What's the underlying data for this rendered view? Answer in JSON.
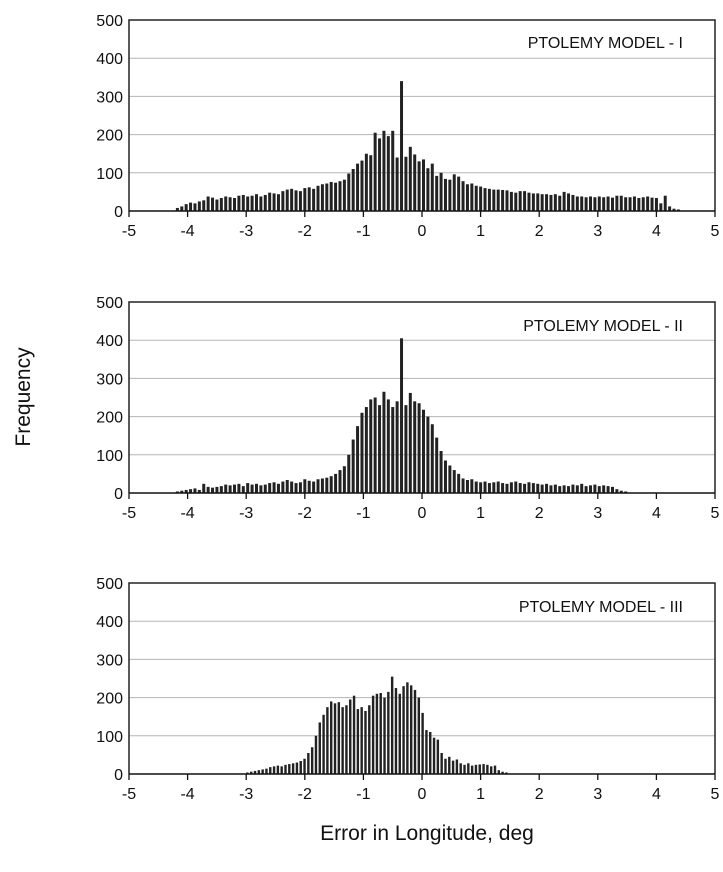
{
  "figure": {
    "ylabel": "Frequency",
    "xlabel": "Error in Longitude,  deg"
  },
  "chart_data": [
    {
      "type": "bar",
      "title": "PTOLEMY MODEL - I",
      "xlim": [
        -5,
        5
      ],
      "ylim": [
        0,
        500
      ],
      "xticks": [
        "-5",
        "-4",
        "-3",
        "-2",
        "-1",
        "0",
        "1",
        "2",
        "3",
        "4",
        "5"
      ],
      "yticks": [
        "0",
        "100",
        "200",
        "300",
        "400",
        "500"
      ],
      "grid": "horizontal",
      "bin_start": -4.2,
      "bin_width": 0.075,
      "values": [
        8,
        12,
        18,
        22,
        20,
        25,
        28,
        38,
        35,
        30,
        34,
        38,
        36,
        34,
        40,
        42,
        38,
        40,
        44,
        38,
        42,
        48,
        46,
        44,
        52,
        56,
        58,
        54,
        52,
        60,
        62,
        58,
        66,
        70,
        72,
        76,
        74,
        78,
        82,
        98,
        110,
        124,
        132,
        150,
        146,
        205,
        190,
        210,
        196,
        210,
        140,
        340,
        142,
        168,
        148,
        130,
        135,
        112,
        124,
        92,
        100,
        84,
        82,
        96,
        90,
        78,
        70,
        72,
        66,
        64,
        60,
        58,
        56,
        56,
        55,
        54,
        50,
        48,
        52,
        52,
        48,
        46,
        46,
        44,
        44,
        42,
        44,
        40,
        50,
        46,
        42,
        38,
        38,
        36,
        38,
        36,
        38,
        36,
        38,
        35,
        40,
        40,
        36,
        36,
        38,
        34,
        36,
        38,
        35,
        34,
        20,
        40,
        12,
        6,
        4
      ]
    },
    {
      "type": "bar",
      "title": "PTOLEMY MODEL - II",
      "xlim": [
        -5,
        5
      ],
      "ylim": [
        0,
        500
      ],
      "xticks": [
        "-5",
        "-4",
        "-3",
        "-2",
        "-1",
        "0",
        "1",
        "2",
        "3",
        "4",
        "5"
      ],
      "yticks": [
        "0",
        "100",
        "200",
        "300",
        "400",
        "500"
      ],
      "grid": "horizontal",
      "bin_start": -4.2,
      "bin_width": 0.075,
      "values": [
        4,
        6,
        8,
        10,
        12,
        8,
        24,
        16,
        14,
        16,
        18,
        22,
        20,
        22,
        24,
        18,
        26,
        22,
        24,
        20,
        22,
        26,
        28,
        24,
        30,
        34,
        30,
        26,
        28,
        36,
        32,
        30,
        36,
        38,
        40,
        44,
        50,
        60,
        70,
        100,
        140,
        175,
        210,
        225,
        245,
        250,
        230,
        265,
        245,
        225,
        240,
        405,
        230,
        262,
        240,
        235,
        218,
        200,
        180,
        145,
        110,
        85,
        72,
        60,
        50,
        38,
        34,
        36,
        30,
        28,
        30,
        26,
        28,
        30,
        26,
        24,
        28,
        30,
        26,
        24,
        28,
        26,
        24,
        22,
        24,
        20,
        22,
        18,
        20,
        18,
        22,
        20,
        24,
        18,
        20,
        22,
        18,
        20,
        18,
        16,
        10,
        6,
        4
      ]
    },
    {
      "type": "bar",
      "title": "PTOLEMY MODEL - III",
      "xlim": [
        -5,
        5
      ],
      "ylim": [
        0,
        500
      ],
      "xticks": [
        "-5",
        "-4",
        "-3",
        "-2",
        "-1",
        "0",
        "1",
        "2",
        "3",
        "4",
        "5"
      ],
      "yticks": [
        "0",
        "100",
        "200",
        "300",
        "400",
        "500"
      ],
      "grid": "horizontal",
      "bin_start": -3.0,
      "bin_width": 0.065,
      "values": [
        4,
        6,
        8,
        10,
        12,
        14,
        18,
        20,
        22,
        20,
        24,
        26,
        28,
        30,
        34,
        40,
        55,
        70,
        100,
        135,
        155,
        175,
        190,
        185,
        188,
        175,
        180,
        195,
        205,
        170,
        175,
        165,
        180,
        205,
        210,
        212,
        200,
        215,
        255,
        225,
        210,
        230,
        240,
        232,
        220,
        200,
        160,
        115,
        110,
        95,
        90,
        55,
        40,
        45,
        35,
        38,
        28,
        24,
        28,
        22,
        24,
        25,
        26,
        24,
        20,
        22,
        10,
        6,
        4
      ]
    }
  ]
}
